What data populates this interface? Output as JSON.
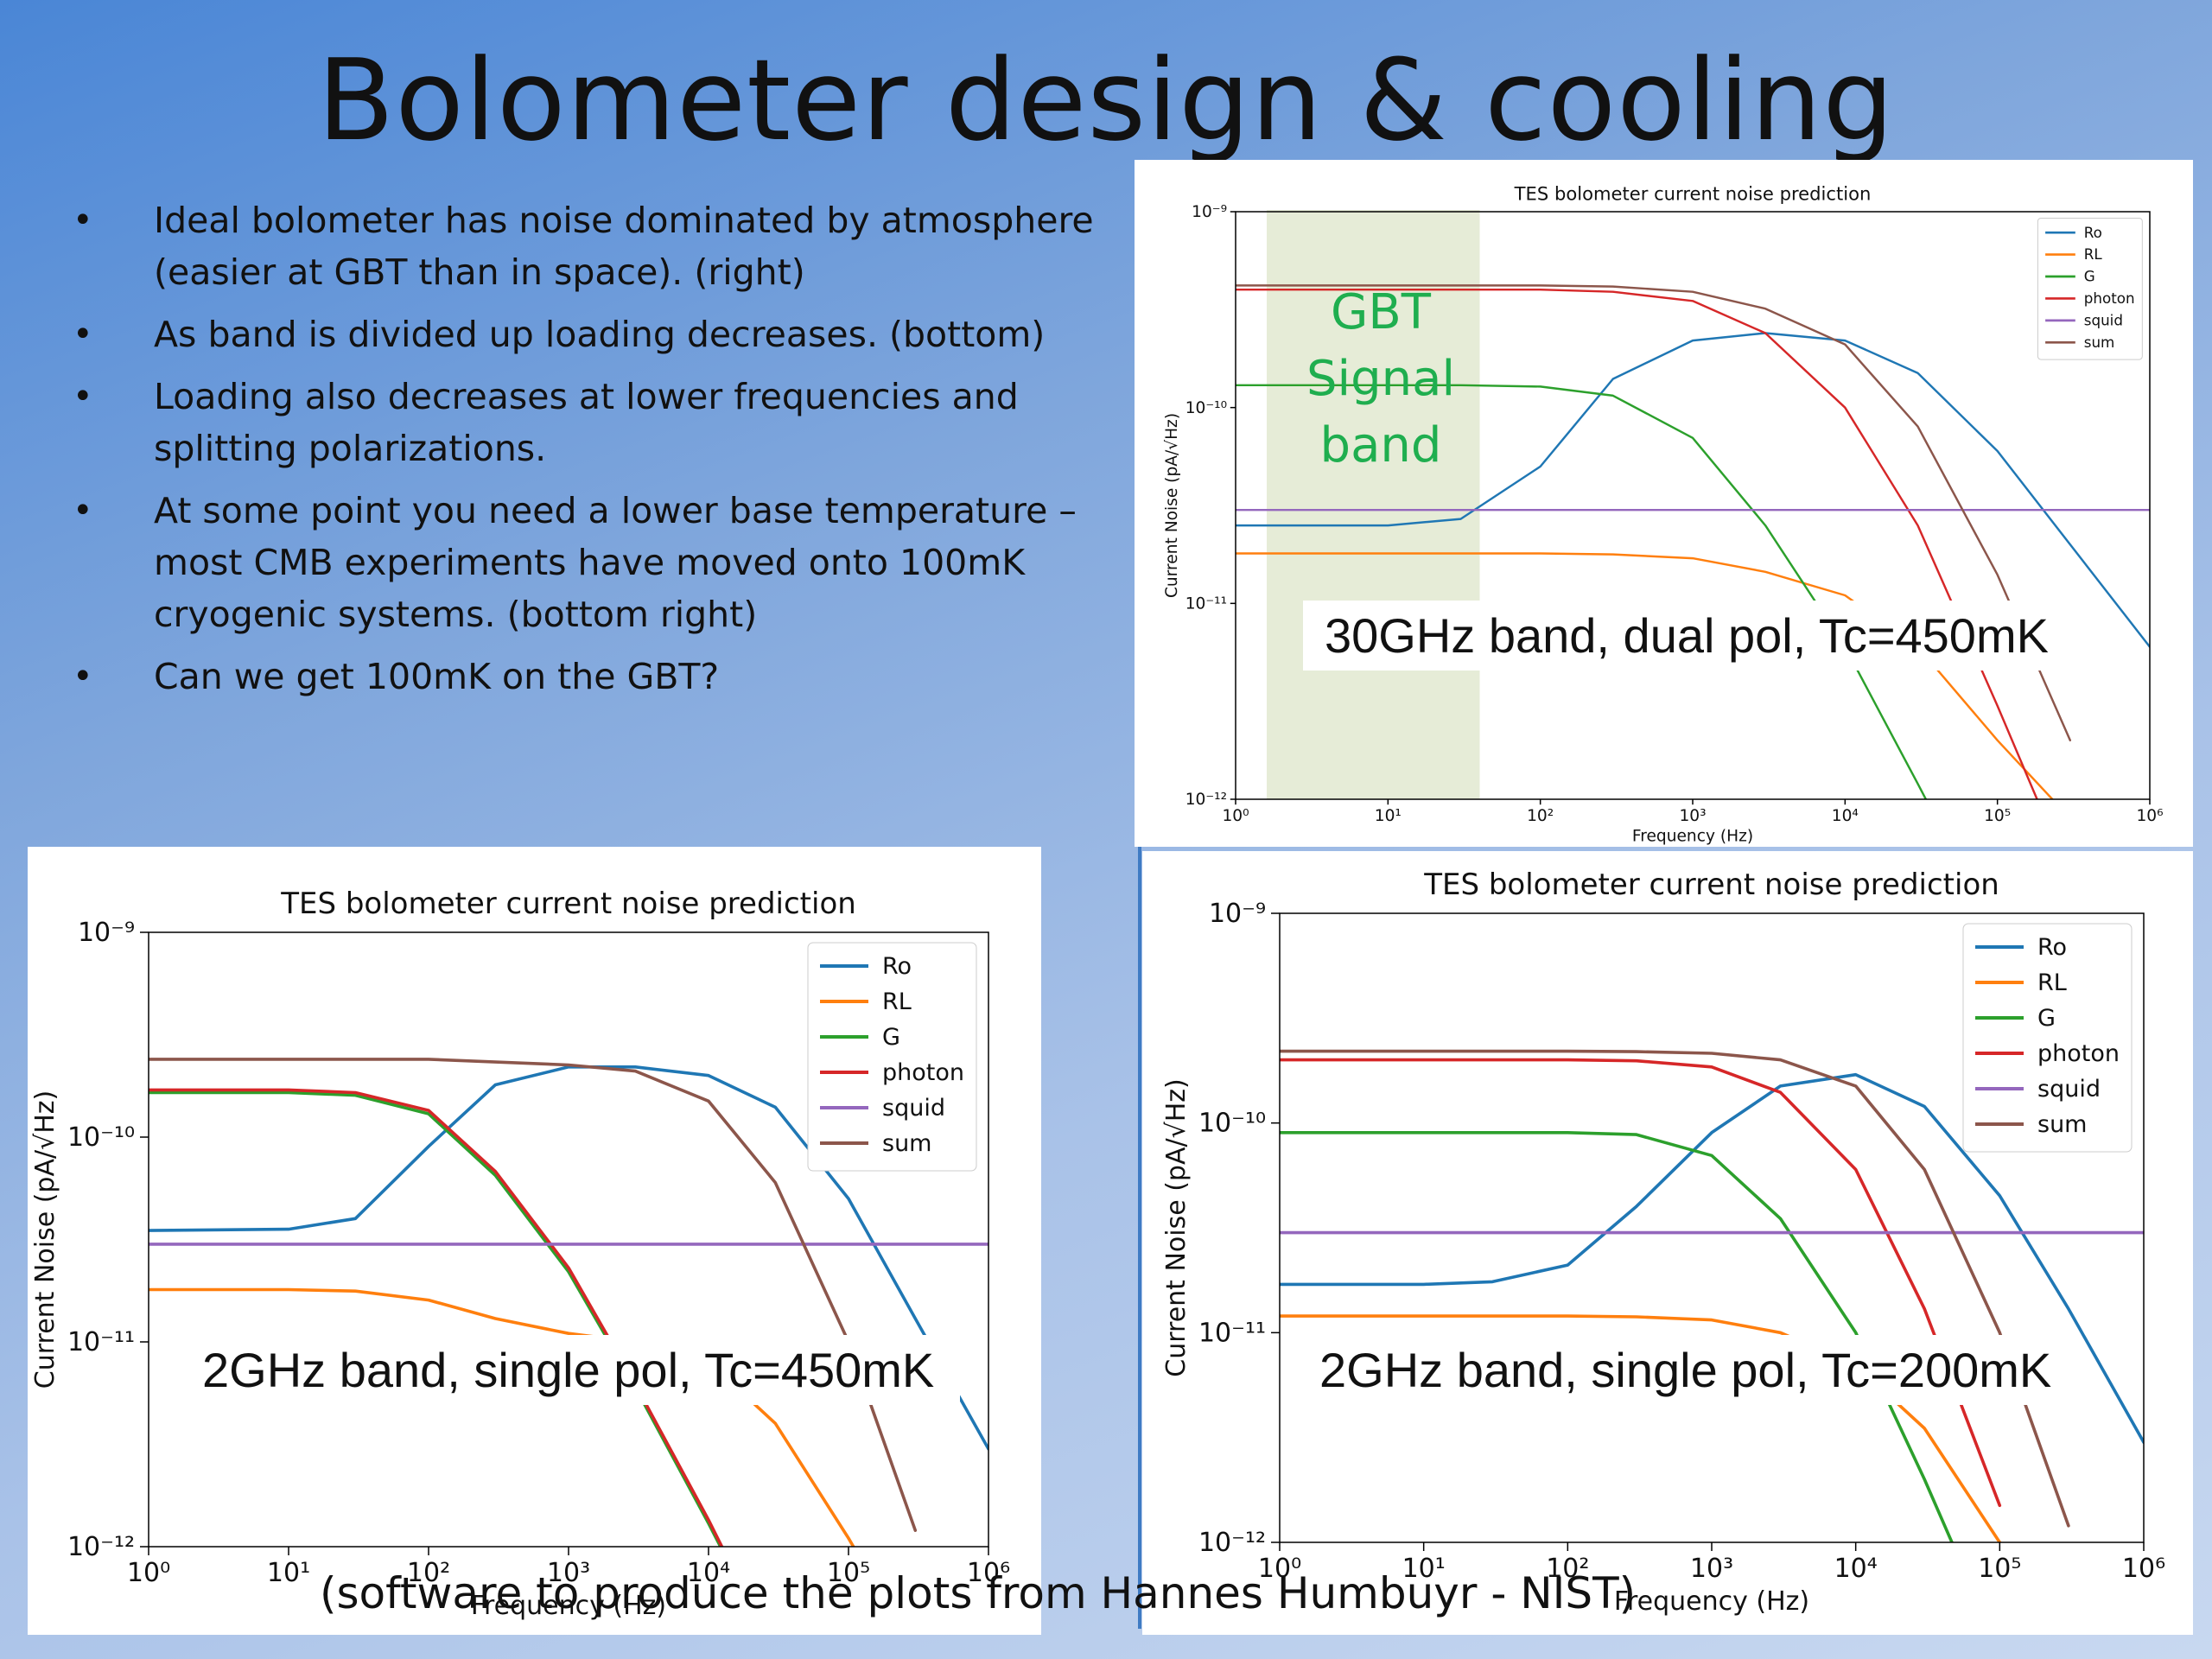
{
  "slide": {
    "title": "Bolometer design & cooling",
    "bullets": [
      "Ideal bolometer has noise dominated by atmosphere (easier at GBT than in space). (right)",
      "As band is divided up loading decreases. (bottom)",
      "Loading also decreases at lower frequencies and splitting polarizations.",
      "At some point you need a lower base temperature – most CMB experiments have moved onto 100mK cryogenic systems. (bottom right)",
      "Can we get 100mK on the GBT?"
    ],
    "bullet_glyph": "•",
    "credit": "(software to produce the plots from Hannes Humbuyr - NIST)",
    "gbt_label": [
      "GBT",
      "Signal",
      "band"
    ],
    "overlays": {
      "top": "30GHz band, dual pol, Tc=450mK",
      "bottom_left": "2GHz band, single pol, Tc=450mK",
      "bottom_right": "2GHz band, single pol, Tc=200mK"
    },
    "colors": {
      "Ro": "#1f77b4",
      "RL": "#ff7f0e",
      "G": "#2ca02c",
      "photon": "#d62728",
      "squid": "#9467bd",
      "sum": "#8c564b",
      "gbt_band": "#e6ecd7",
      "gbt_text": "#1fae4f"
    }
  },
  "chart_data": [
    {
      "id": "top",
      "type": "line",
      "title": "TES bolometer current noise prediction",
      "xlabel": "Frequency (Hz)",
      "ylabel": "Current Noise (pA/√Hz)",
      "xscale": "log",
      "yscale": "log",
      "xlim": [
        1,
        1000000
      ],
      "ylim": [
        1e-12,
        1e-09
      ],
      "xticks": [
        "10⁰",
        "10¹",
        "10²",
        "10³",
        "10⁴",
        "10⁵",
        "10⁶"
      ],
      "yticks": [
        "10⁻¹²",
        "10⁻¹¹",
        "10⁻¹⁰",
        "10⁻⁹"
      ],
      "legend": "top-right",
      "shaded_band_hz": [
        1.6,
        40
      ],
      "series": [
        {
          "name": "Ro",
          "x": [
            1,
            10,
            30,
            100,
            300,
            1000,
            3000,
            10000,
            30000,
            100000,
            300000,
            1000000
          ],
          "y": [
            2.5e-11,
            2.5e-11,
            2.7e-11,
            5e-11,
            1.4e-10,
            2.2e-10,
            2.4e-10,
            2.2e-10,
            1.5e-10,
            6e-11,
            2e-11,
            6e-12
          ]
        },
        {
          "name": "RL",
          "x": [
            1,
            100,
            300,
            1000,
            3000,
            10000,
            30000,
            100000,
            300000
          ],
          "y": [
            1.8e-11,
            1.8e-11,
            1.78e-11,
            1.7e-11,
            1.45e-11,
            1.1e-11,
            6e-12,
            2e-12,
            8e-13
          ]
        },
        {
          "name": "G",
          "x": [
            1,
            30,
            100,
            300,
            1000,
            3000,
            10000,
            30000,
            100000
          ],
          "y": [
            1.3e-10,
            1.3e-10,
            1.28e-10,
            1.15e-10,
            7e-11,
            2.5e-11,
            6e-12,
            1.2e-12,
            2e-13
          ]
        },
        {
          "name": "photon",
          "x": [
            1,
            100,
            300,
            1000,
            3000,
            10000,
            30000,
            100000,
            300000
          ],
          "y": [
            4e-10,
            4e-10,
            3.9e-10,
            3.5e-10,
            2.4e-10,
            1e-10,
            2.5e-11,
            3e-12,
            4e-13
          ]
        },
        {
          "name": "squid",
          "x": [
            1,
            1000000
          ],
          "y": [
            3e-11,
            3e-11
          ]
        },
        {
          "name": "sum",
          "x": [
            1,
            100,
            300,
            1000,
            3000,
            10000,
            30000,
            100000,
            300000
          ],
          "y": [
            4.2e-10,
            4.2e-10,
            4.15e-10,
            3.9e-10,
            3.2e-10,
            2.1e-10,
            8e-11,
            1.4e-11,
            2e-12
          ]
        }
      ]
    },
    {
      "id": "bottom_left",
      "type": "line",
      "title": "TES bolometer current noise prediction",
      "xlabel": "Frequency (Hz)",
      "ylabel": "Current Noise (pA/√Hz)",
      "xscale": "log",
      "yscale": "log",
      "xlim": [
        1,
        1000000
      ],
      "ylim": [
        1e-12,
        1e-09
      ],
      "xticks": [
        "10⁰",
        "10¹",
        "10²",
        "10³",
        "10⁴",
        "10⁵",
        "10⁶"
      ],
      "yticks": [
        "10⁻¹²",
        "10⁻¹¹",
        "10⁻¹⁰",
        "10⁻⁹"
      ],
      "legend": "top-right",
      "series": [
        {
          "name": "Ro",
          "x": [
            1,
            10,
            30,
            100,
            300,
            1000,
            3000,
            10000,
            30000,
            100000,
            300000,
            1000000
          ],
          "y": [
            3.5e-11,
            3.55e-11,
            4e-11,
            9e-11,
            1.8e-10,
            2.2e-10,
            2.2e-10,
            2e-10,
            1.4e-10,
            5e-11,
            1.3e-11,
            3e-12
          ]
        },
        {
          "name": "RL",
          "x": [
            1,
            10,
            30,
            100,
            300,
            1000,
            3000,
            10000,
            30000,
            100000,
            300000
          ],
          "y": [
            1.8e-11,
            1.8e-11,
            1.77e-11,
            1.6e-11,
            1.3e-11,
            1.1e-11,
            1e-11,
            8e-12,
            4e-12,
            1.1e-12,
            3e-13
          ]
        },
        {
          "name": "G",
          "x": [
            1,
            10,
            30,
            100,
            300,
            1000,
            3000,
            10000,
            30000
          ],
          "y": [
            1.65e-10,
            1.65e-10,
            1.6e-10,
            1.3e-10,
            6.5e-11,
            2.2e-11,
            6e-12,
            1.3e-12,
            3e-13
          ]
        },
        {
          "name": "photon",
          "x": [
            1,
            10,
            30,
            100,
            300,
            1000,
            3000,
            10000,
            30000
          ],
          "y": [
            1.7e-10,
            1.7e-10,
            1.65e-10,
            1.35e-10,
            6.8e-11,
            2.3e-11,
            6.2e-12,
            1.35e-12,
            3e-13
          ]
        },
        {
          "name": "squid",
          "x": [
            1,
            1000000
          ],
          "y": [
            3e-11,
            3e-11
          ]
        },
        {
          "name": "sum",
          "x": [
            1,
            10,
            100,
            1000,
            3000,
            10000,
            30000,
            100000,
            300000
          ],
          "y": [
            2.4e-10,
            2.4e-10,
            2.4e-10,
            2.25e-10,
            2.1e-10,
            1.5e-10,
            6e-11,
            1e-11,
            1.2e-12
          ]
        }
      ]
    },
    {
      "id": "bottom_right",
      "type": "line",
      "title": "TES bolometer current noise prediction",
      "xlabel": "Frequency (Hz)",
      "ylabel": "Current Noise (pA/√Hz)",
      "xscale": "log",
      "yscale": "log",
      "xlim": [
        1,
        1000000
      ],
      "ylim": [
        1e-12,
        1e-09
      ],
      "xticks": [
        "10⁰",
        "10¹",
        "10²",
        "10³",
        "10⁴",
        "10⁵",
        "10⁶"
      ],
      "yticks": [
        "10⁻¹²",
        "10⁻¹¹",
        "10⁻¹⁰",
        "10⁻⁹"
      ],
      "legend": "top-right",
      "series": [
        {
          "name": "Ro",
          "x": [
            1,
            10,
            30,
            100,
            300,
            1000,
            3000,
            10000,
            30000,
            100000,
            300000,
            1000000
          ],
          "y": [
            1.7e-11,
            1.7e-11,
            1.75e-11,
            2.1e-11,
            4e-11,
            9e-11,
            1.5e-10,
            1.7e-10,
            1.2e-10,
            4.5e-11,
            1.3e-11,
            3e-12
          ]
        },
        {
          "name": "RL",
          "x": [
            1,
            100,
            300,
            1000,
            3000,
            10000,
            30000,
            100000,
            300000
          ],
          "y": [
            1.2e-11,
            1.2e-11,
            1.19e-11,
            1.15e-11,
            1e-11,
            7e-12,
            3.5e-12,
            1e-12,
            2e-13
          ]
        },
        {
          "name": "G",
          "x": [
            1,
            100,
            300,
            1000,
            3000,
            10000,
            30000,
            100000
          ],
          "y": [
            9e-11,
            9e-11,
            8.8e-11,
            7e-11,
            3.5e-11,
            1e-11,
            2e-12,
            3e-13
          ]
        },
        {
          "name": "photon",
          "x": [
            1,
            100,
            300,
            1000,
            3000,
            10000,
            30000,
            100000
          ],
          "y": [
            2e-10,
            2e-10,
            1.98e-10,
            1.85e-10,
            1.4e-10,
            6e-11,
            1.3e-11,
            1.5e-12
          ]
        },
        {
          "name": "squid",
          "x": [
            1,
            1000000
          ],
          "y": [
            3e-11,
            3e-11
          ]
        },
        {
          "name": "sum",
          "x": [
            1,
            100,
            300,
            1000,
            3000,
            10000,
            30000,
            100000,
            300000
          ],
          "y": [
            2.2e-10,
            2.2e-10,
            2.19e-10,
            2.15e-10,
            2e-10,
            1.5e-10,
            6e-11,
            1e-11,
            1.2e-12
          ]
        }
      ]
    }
  ]
}
